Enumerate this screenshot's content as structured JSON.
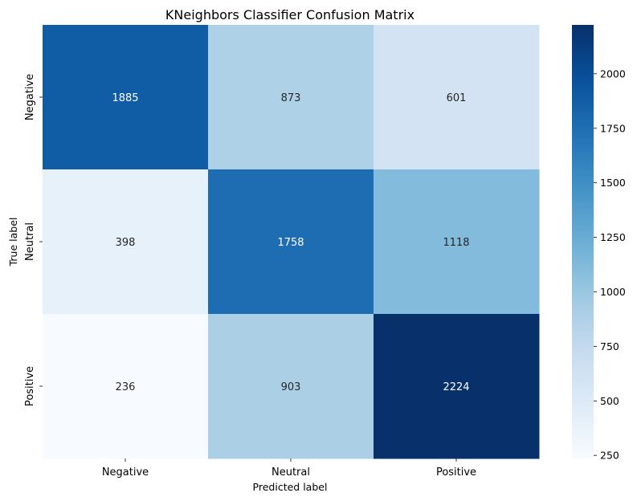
{
  "chart_data": {
    "type": "heatmap",
    "title": "KNeighbors Classifier Confusion Matrix",
    "xlabel": "Predicted label",
    "ylabel": "True label",
    "x_categories": [
      "Negative",
      "Neutral",
      "Positive"
    ],
    "y_categories": [
      "Negative",
      "Neutral",
      "Positive"
    ],
    "matrix": [
      [
        1885,
        873,
        601
      ],
      [
        398,
        1758,
        1118
      ],
      [
        236,
        903,
        2224
      ]
    ],
    "colormap": "Blues",
    "colorbar": {
      "vmin": 236,
      "vmax": 2224,
      "ticks": [
        250,
        500,
        750,
        1000,
        1250,
        1500,
        1750,
        2000
      ]
    },
    "annotations": true,
    "grid": false
  }
}
